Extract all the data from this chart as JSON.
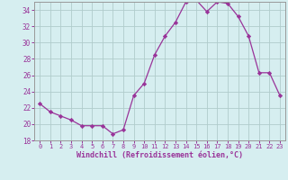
{
  "x": [
    0,
    1,
    2,
    3,
    4,
    5,
    6,
    7,
    8,
    9,
    10,
    11,
    12,
    13,
    14,
    15,
    16,
    17,
    18,
    19,
    20,
    21,
    22,
    23
  ],
  "y": [
    22.5,
    21.5,
    21.0,
    20.5,
    19.8,
    19.8,
    19.8,
    18.8,
    19.3,
    23.5,
    25.0,
    28.5,
    30.8,
    32.5,
    35.0,
    35.2,
    33.8,
    35.0,
    34.8,
    33.2,
    30.8,
    26.3,
    26.3,
    23.5
  ],
  "line_color": "#993399",
  "marker": "D",
  "marker_size": 2.2,
  "bg_color": "#d6eef0",
  "grid_color": "#b0cccc",
  "xlabel": "Windchill (Refroidissement éolien,°C)",
  "xlabel_color": "#993399",
  "tick_color": "#993399",
  "ylim": [
    18,
    35
  ],
  "yticks": [
    18,
    20,
    22,
    24,
    26,
    28,
    30,
    32,
    34
  ],
  "xlim": [
    -0.5,
    23.5
  ],
  "xticks": [
    0,
    1,
    2,
    3,
    4,
    5,
    6,
    7,
    8,
    9,
    10,
    11,
    12,
    13,
    14,
    15,
    16,
    17,
    18,
    19,
    20,
    21,
    22,
    23
  ]
}
